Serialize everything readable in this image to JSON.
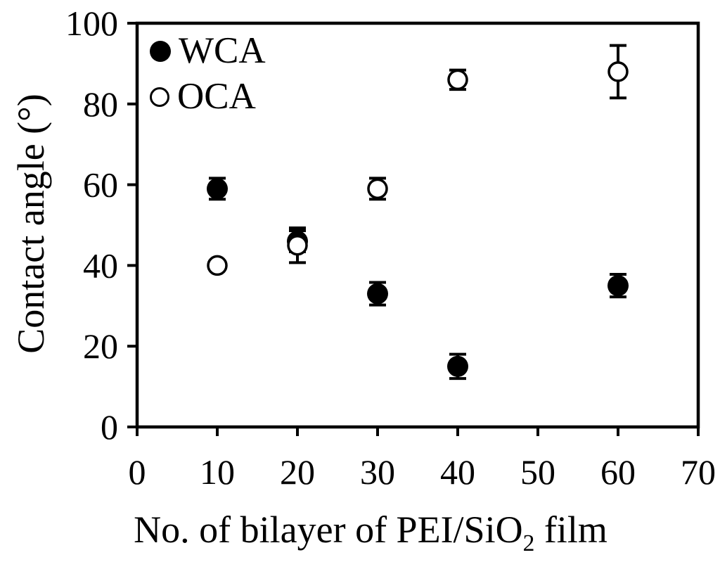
{
  "figure": {
    "background": "#ffffff",
    "foreground": "#000000"
  },
  "chart_data": {
    "type": "scatter",
    "title": "",
    "xlabel": {
      "text_before_subscript": "No. of bilayer of PEI/SiO",
      "subscript": "2",
      "text_after_subscript": " film"
    },
    "ylabel": "Contact angle (°)",
    "xlim": [
      0,
      70
    ],
    "ylim": [
      0,
      100
    ],
    "x_ticks": [
      0,
      10,
      20,
      30,
      40,
      50,
      60,
      70
    ],
    "y_ticks": [
      0,
      20,
      40,
      60,
      80,
      100
    ],
    "grid": false,
    "legend": {
      "position": "top-left",
      "entries": [
        "WCA",
        "OCA"
      ]
    },
    "series": [
      {
        "name": "WCA",
        "marker": "filled-circle",
        "points": [
          {
            "x": 10,
            "y": 59,
            "err": 2.6
          },
          {
            "x": 20,
            "y": 46,
            "err": 2.6
          },
          {
            "x": 30,
            "y": 33,
            "err": 2.8
          },
          {
            "x": 40,
            "y": 15,
            "err": 3.0
          },
          {
            "x": 60,
            "y": 35,
            "err": 2.8
          }
        ]
      },
      {
        "name": "OCA",
        "marker": "open-circle",
        "points": [
          {
            "x": 10,
            "y": 40,
            "err": 0
          },
          {
            "x": 20,
            "y": 45,
            "err": 4.3
          },
          {
            "x": 30,
            "y": 59,
            "err": 2.6
          },
          {
            "x": 40,
            "y": 86,
            "err": 2.4
          },
          {
            "x": 60,
            "y": 88,
            "err": 6.5
          }
        ]
      }
    ]
  }
}
